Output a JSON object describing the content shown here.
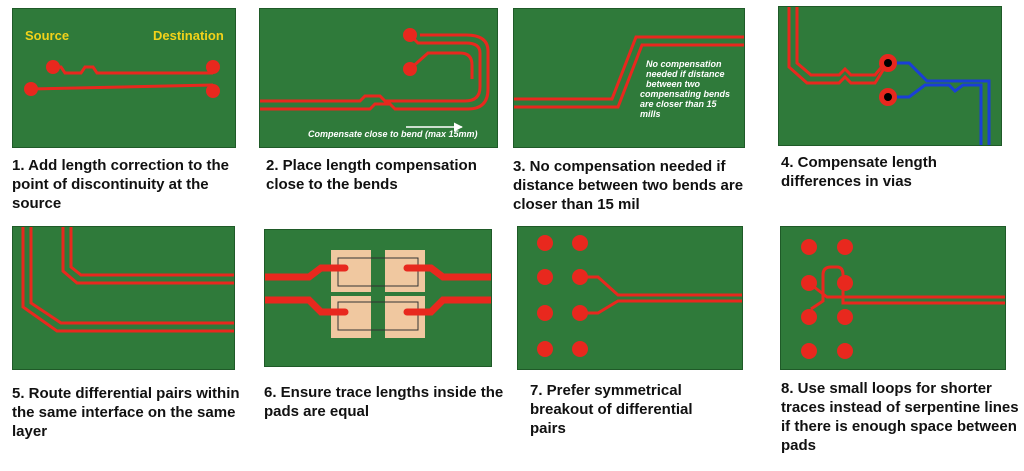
{
  "panels": [
    {
      "caption": "1. Add length correction to the point of discontinuity at the source",
      "labels": {
        "source": "Source",
        "destination": "Destination"
      }
    },
    {
      "caption": "2. Place length compensation close to the bends",
      "labels": {
        "note": "Compensate close to bend (max 15mm)"
      }
    },
    {
      "caption": "3. No compensation needed if distance between two bends are closer than 15 mil",
      "labels": {
        "note_lines": [
          "No compensation",
          "needed if distance",
          "between two",
          "compensating bends",
          "are closer than 15",
          "mills"
        ]
      }
    },
    {
      "caption": "4. Compensate length differences in vias"
    },
    {
      "caption": "5. Route differential pairs within the same interface on the same layer"
    },
    {
      "caption": "6. Ensure trace lengths inside the pads are equal"
    },
    {
      "caption": "7. Prefer symmetrical breakout of differential pairs"
    },
    {
      "caption": "8. Use small loops for shorter traces instead of serpentine lines if there is enough space between pads"
    }
  ],
  "colors": {
    "board": "#2f7a3a",
    "trace": "#e8281e",
    "trace_blue": "#1a3fd6",
    "pad": "#f0c8a0",
    "text_label": "#f2d21a"
  }
}
